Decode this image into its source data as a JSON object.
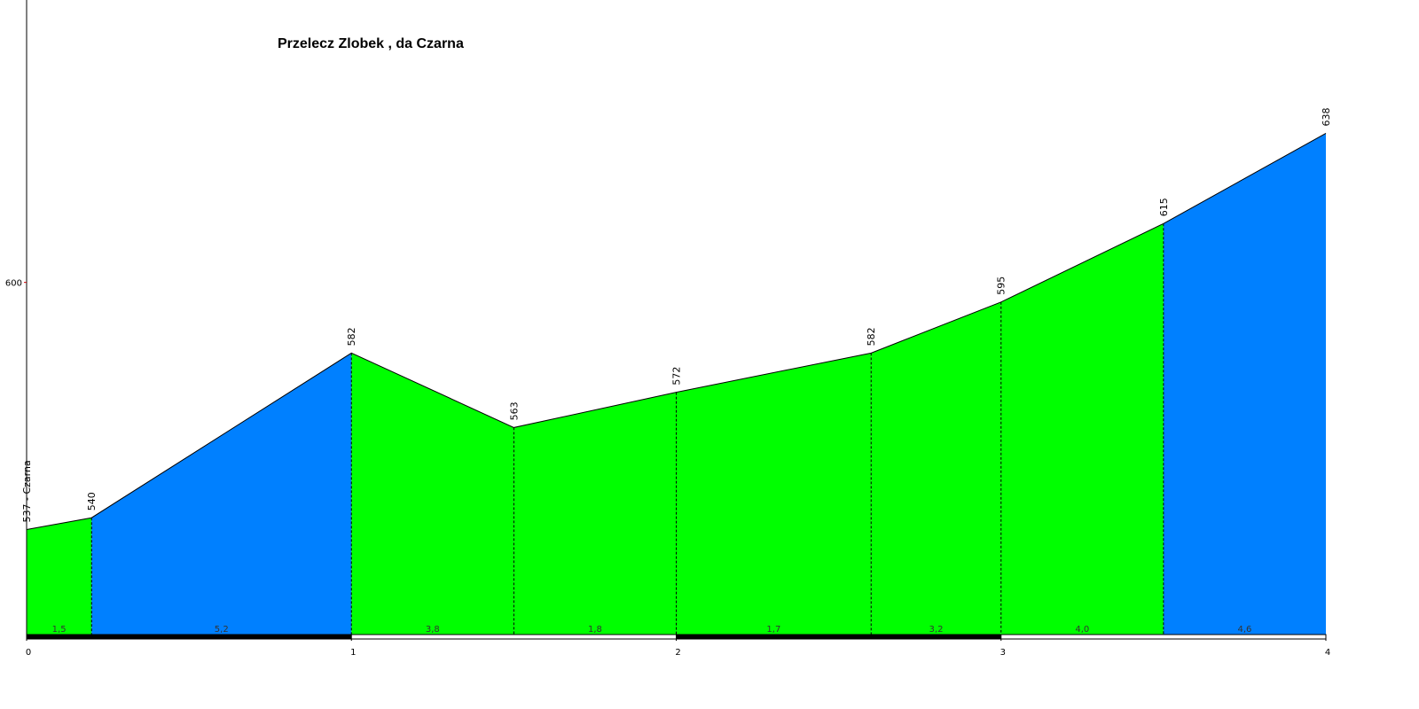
{
  "chart_data": {
    "type": "profile",
    "title": "Przelecz Zlobek , da Czarna",
    "x": [
      0,
      0.2,
      1,
      1.5,
      2,
      2.6,
      3,
      3.5,
      4
    ],
    "values": [
      537,
      540,
      582,
      563,
      572,
      582,
      595,
      615,
      638
    ],
    "value_labels": [
      "537 - Czarna",
      "540",
      "582",
      "563",
      "572",
      "582",
      "595",
      "615",
      "638"
    ],
    "segments": {
      "values": [
        1.5,
        5.2,
        3.8,
        1.8,
        1.7,
        3.2,
        4.0,
        4.6
      ],
      "value_labels": [
        "1,5",
        "5,2",
        "3,8",
        "1,8",
        "1,7",
        "3,2",
        "4,0",
        "4,6"
      ],
      "colors": [
        "#00ff00",
        "#0080ff",
        "#00ff00",
        "#00ff00",
        "#00ff00",
        "#00ff00",
        "#00ff00",
        "#0080ff"
      ]
    },
    "xlim": [
      0,
      4
    ],
    "xticks": [
      0,
      1,
      2,
      3,
      4
    ],
    "ylim": [
      510,
      672
    ],
    "yticks": [
      600
    ]
  }
}
